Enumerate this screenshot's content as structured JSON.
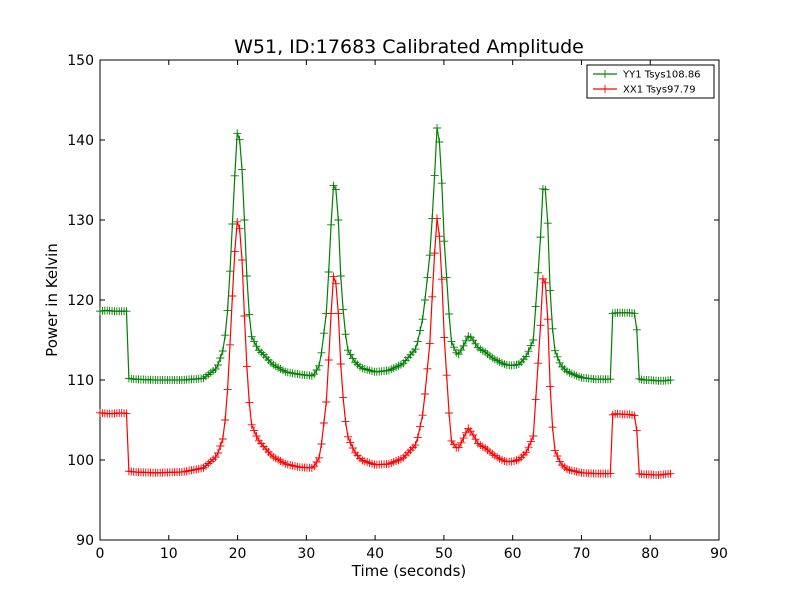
{
  "chart_data": {
    "type": "line",
    "title": "W51, ID:17683 Calibrated Amplitude",
    "xlabel": "Time (seconds)",
    "ylabel": "Power in Kelvin",
    "xlim": [
      0,
      90
    ],
    "ylim": [
      90,
      150
    ],
    "xticks": [
      "0",
      "10",
      "20",
      "30",
      "40",
      "50",
      "60",
      "70",
      "80",
      "90"
    ],
    "yticks": [
      "90",
      "100",
      "110",
      "120",
      "130",
      "140",
      "150"
    ],
    "grid": false,
    "legend_position": "top-right",
    "marker": "plus",
    "series": [
      {
        "name": "YY1 Tsys108.86",
        "color": "#008000",
        "x": [
          0,
          1,
          2,
          3,
          4,
          4.2,
          5,
          8,
          12,
          15,
          17,
          18,
          18.5,
          19,
          19.5,
          20,
          20.5,
          21,
          21.5,
          22,
          23,
          24,
          25,
          27,
          29,
          31,
          32,
          33,
          33.5,
          34,
          34.5,
          35,
          35.5,
          36,
          37,
          38,
          40,
          42,
          44,
          46,
          47,
          48,
          48.5,
          49,
          49.5,
          50,
          51,
          52,
          53,
          53.5,
          54,
          55,
          56,
          57,
          58,
          59,
          60,
          61,
          62,
          63,
          64,
          64.5,
          65,
          65.5,
          66,
          67,
          68,
          70,
          72,
          74.2,
          74.4,
          75,
          76,
          77,
          78,
          78.2,
          79,
          80,
          81,
          82,
          83
        ],
        "y": [
          118.6,
          118.7,
          118.6,
          118.6,
          118.6,
          110.2,
          110.1,
          110.0,
          110.0,
          110.2,
          111.5,
          114.0,
          118.0,
          125.0,
          134.0,
          141.6,
          139.0,
          130.0,
          120.0,
          115.5,
          113.8,
          113.0,
          112.0,
          111.0,
          110.7,
          110.5,
          112.0,
          119.0,
          128.0,
          135.0,
          133.0,
          123.0,
          117.0,
          113.8,
          112.3,
          111.5,
          111.0,
          111.2,
          112.0,
          114.0,
          118.0,
          126.0,
          133.0,
          141.5,
          139.0,
          128.0,
          115.0,
          113.0,
          114.5,
          115.5,
          115.3,
          114.0,
          113.5,
          112.8,
          112.3,
          111.9,
          111.8,
          112.0,
          113.0,
          115.0,
          127.0,
          135.6,
          132.0,
          120.0,
          114.0,
          111.8,
          111.0,
          110.3,
          110.1,
          110.1,
          118.3,
          118.4,
          118.4,
          118.4,
          118.3,
          110.2,
          110.0,
          110.0,
          109.9,
          109.9,
          110.0
        ]
      },
      {
        "name": "XX1 Tsys97.79",
        "color": "#ff0000",
        "x": [
          0,
          1,
          2,
          3,
          4,
          4.2,
          5,
          8,
          12,
          15,
          17,
          18,
          18.5,
          19,
          19.5,
          20,
          20.5,
          21,
          21.5,
          22,
          23,
          24,
          25,
          27,
          29,
          31,
          32,
          33,
          33.5,
          34,
          34.5,
          35,
          35.5,
          36,
          37,
          38,
          40,
          42,
          44,
          46,
          47,
          48,
          48.5,
          49,
          49.5,
          50,
          51,
          52,
          53,
          53.5,
          54,
          55,
          56,
          57,
          58,
          59,
          60,
          61,
          62,
          63,
          64,
          64.5,
          65,
          65.5,
          66,
          67,
          68,
          70,
          72,
          74.2,
          74.4,
          75,
          76,
          77,
          78,
          78.2,
          79,
          80,
          81,
          82,
          83
        ],
        "y": [
          105.9,
          105.8,
          105.8,
          105.9,
          105.8,
          98.6,
          98.5,
          98.4,
          98.5,
          99.0,
          100.5,
          103.0,
          108.0,
          116.0,
          125.0,
          130.3,
          128.0,
          118.0,
          109.0,
          104.5,
          102.5,
          101.5,
          100.5,
          99.5,
          99.1,
          99.0,
          100.5,
          108.0,
          117.0,
          123.6,
          121.0,
          112.0,
          106.0,
          103.0,
          101.0,
          100.0,
          99.4,
          99.5,
          100.2,
          102.0,
          106.0,
          115.0,
          124.0,
          130.2,
          127.0,
          116.0,
          102.5,
          101.3,
          103.0,
          104.0,
          103.5,
          102.0,
          101.5,
          100.8,
          100.2,
          99.8,
          99.8,
          100.1,
          101.0,
          103.0,
          116.0,
          124.3,
          120.0,
          108.0,
          101.5,
          99.5,
          98.8,
          98.4,
          98.3,
          98.3,
          105.6,
          105.8,
          105.7,
          105.7,
          105.5,
          98.3,
          98.2,
          98.2,
          98.1,
          98.2,
          98.3
        ]
      }
    ]
  }
}
